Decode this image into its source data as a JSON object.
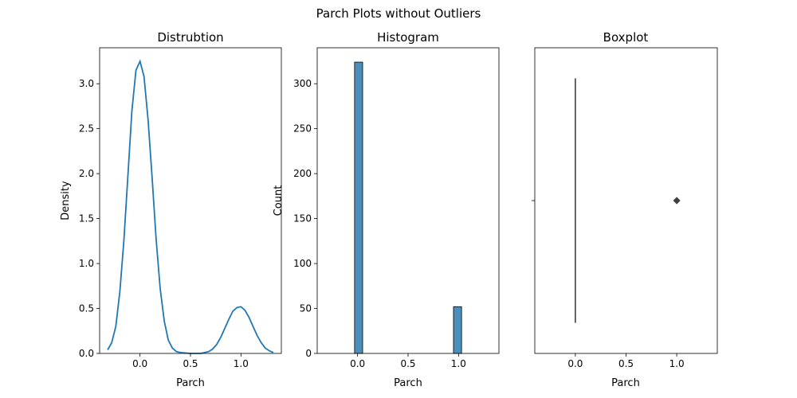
{
  "suptitle": "Parch Plots without Outliers",
  "colors": {
    "primary": "#1f77b4",
    "hist_fill": "#4c8fbd",
    "box_line": "#3f3f3f"
  },
  "chart_data": [
    {
      "type": "line",
      "subtype": "kde",
      "title": "Distrubtion",
      "xlabel": "Parch",
      "ylabel": "Density",
      "xlim": [
        -0.4,
        1.4
      ],
      "ylim": [
        0,
        3.4
      ],
      "xticks": [
        0.0,
        0.5,
        1.0
      ],
      "xtick_labels": [
        "0.0",
        "0.5",
        "1.0"
      ],
      "yticks": [
        0.0,
        0.5,
        1.0,
        1.5,
        2.0,
        2.5,
        3.0
      ],
      "ytick_labels": [
        "0.0",
        "0.5",
        "1.0",
        "1.5",
        "2.0",
        "2.5",
        "3.0"
      ],
      "series": [
        {
          "x": [
            -0.32,
            -0.28,
            -0.24,
            -0.2,
            -0.16,
            -0.12,
            -0.08,
            -0.04,
            0.0,
            0.04,
            0.08,
            0.12,
            0.16,
            0.2,
            0.24,
            0.28,
            0.32,
            0.36,
            0.4,
            0.5,
            0.6,
            0.64,
            0.68,
            0.72,
            0.76,
            0.8,
            0.84,
            0.88,
            0.92,
            0.96,
            1.0,
            1.04,
            1.08,
            1.12,
            1.16,
            1.2,
            1.24,
            1.28,
            1.32
          ],
          "y": [
            0.04,
            0.12,
            0.3,
            0.68,
            1.25,
            1.98,
            2.7,
            3.15,
            3.25,
            3.08,
            2.6,
            1.95,
            1.27,
            0.72,
            0.36,
            0.15,
            0.06,
            0.02,
            0.01,
            0.0,
            0.0,
            0.01,
            0.02,
            0.05,
            0.1,
            0.18,
            0.28,
            0.38,
            0.47,
            0.51,
            0.52,
            0.48,
            0.4,
            0.3,
            0.2,
            0.12,
            0.06,
            0.03,
            0.01
          ]
        }
      ]
    },
    {
      "type": "bar",
      "subtype": "histogram",
      "title": "Histogram",
      "xlabel": "Parch",
      "ylabel": "Count",
      "xlim": [
        -0.4,
        1.4
      ],
      "ylim": [
        0,
        340
      ],
      "xticks": [
        0.0,
        0.5,
        1.0
      ],
      "xtick_labels": [
        "0.0",
        "0.5",
        "1.0"
      ],
      "yticks": [
        0,
        50,
        100,
        150,
        200,
        250,
        300
      ],
      "ytick_labels": [
        "0",
        "50",
        "100",
        "150",
        "200",
        "250",
        "300"
      ],
      "bins": [
        {
          "x0": -0.03,
          "x1": 0.05,
          "count": 324
        },
        {
          "x0": 0.95,
          "x1": 1.03,
          "count": 52
        }
      ]
    },
    {
      "type": "box",
      "title": "Boxplot",
      "xlabel": "Parch",
      "ylabel": "",
      "xlim": [
        -0.4,
        1.4
      ],
      "xticks": [
        0.0,
        0.5,
        1.0
      ],
      "xtick_labels": [
        "0.0",
        "0.5",
        "1.0"
      ],
      "box": {
        "q1": 0.0,
        "median": 0.0,
        "q3": 0.0,
        "whisker_low": 0.0,
        "whisker_high": 0.0,
        "outliers": [
          1.0
        ]
      }
    }
  ]
}
